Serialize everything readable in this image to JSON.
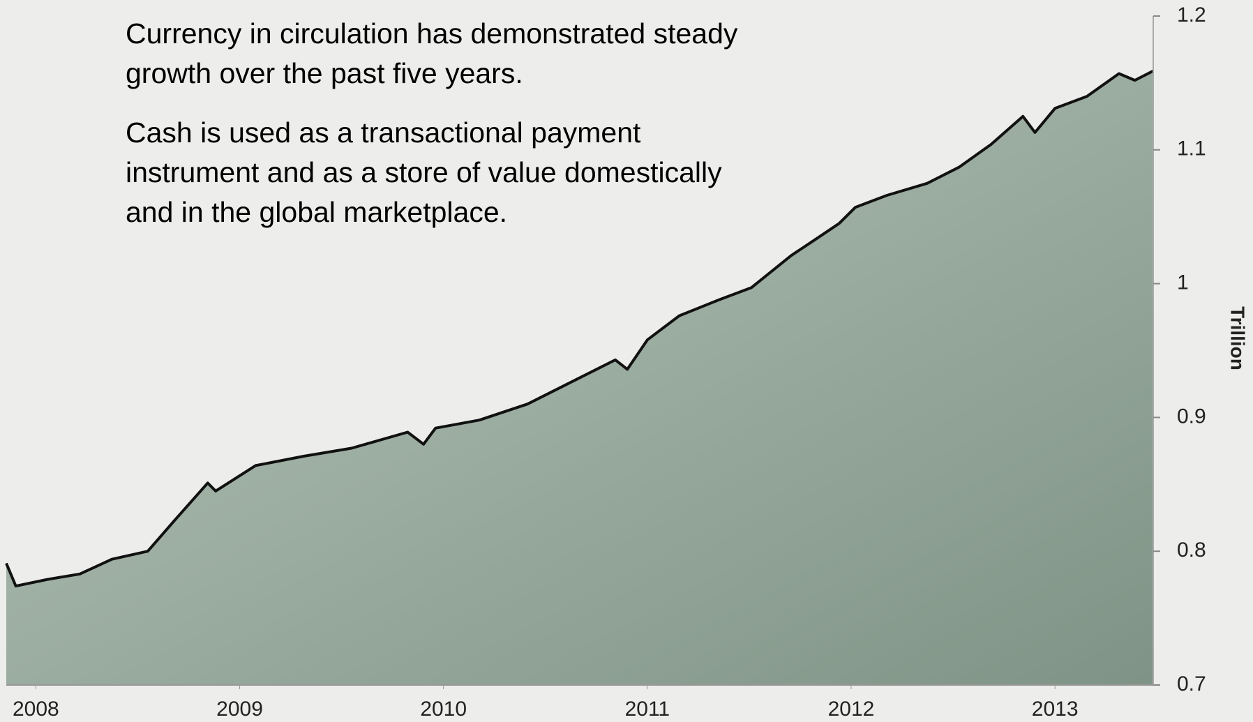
{
  "chart_data": {
    "type": "area",
    "paragraphs": [
      "Currency in circulation has demonstrated steady growth over the past five years.",
      "Cash is used as a transactional payment instrument and as a store of value domestically and in the global marketplace."
    ],
    "y_axis_label": "Trillion",
    "x": [
      2007.855,
      2007.902,
      2008.059,
      2008.216,
      2008.373,
      2008.549,
      2008.686,
      2008.843,
      2008.882,
      2009.078,
      2009.314,
      2009.549,
      2009.824,
      2009.902,
      2009.961,
      2010.176,
      2010.412,
      2010.647,
      2010.843,
      2010.902,
      2011.0,
      2011.157,
      2011.353,
      2011.51,
      2011.706,
      2011.824,
      2011.941,
      2012.02,
      2012.176,
      2012.373,
      2012.529,
      2012.686,
      2012.843,
      2012.902,
      2013.0,
      2013.157,
      2013.314,
      2013.392,
      2013.482
    ],
    "values": [
      0.791,
      0.774,
      0.779,
      0.783,
      0.794,
      0.8,
      0.824,
      0.851,
      0.845,
      0.864,
      0.871,
      0.877,
      0.889,
      0.88,
      0.892,
      0.898,
      0.91,
      0.928,
      0.943,
      0.936,
      0.958,
      0.976,
      0.988,
      0.997,
      1.021,
      1.033,
      1.045,
      1.057,
      1.066,
      1.075,
      1.087,
      1.104,
      1.125,
      1.113,
      1.131,
      1.14,
      1.157,
      1.152,
      1.159
    ],
    "color": "#9fb1a5",
    "line_color": "#111111",
    "xlim": [
      2007.855,
      2013.482
    ],
    "xticks": [
      2008,
      2009,
      2010,
      2011,
      2012,
      2013
    ],
    "ylim": [
      0.7,
      1.2
    ],
    "yticks": [
      0.7,
      0.8,
      0.9,
      1,
      1.1,
      1.2
    ]
  }
}
